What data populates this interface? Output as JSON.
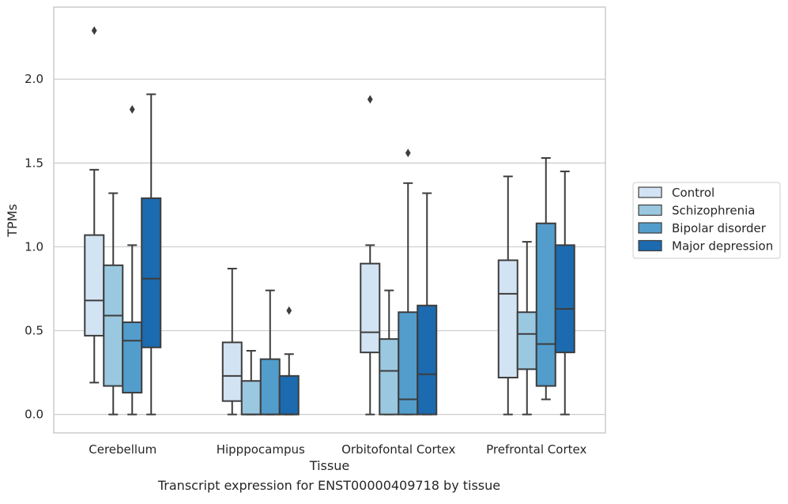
{
  "chart_data": {
    "type": "box",
    "xlabel": "Tissue",
    "ylabel": "TPMs",
    "ylim": [
      -0.11,
      2.43
    ],
    "yticks": [
      0.0,
      0.5,
      1.0,
      1.5,
      2.0
    ],
    "ytick_labels": [
      "0.0",
      "0.5",
      "1.0",
      "1.5",
      "2.0"
    ],
    "grid": "horizontal",
    "legend_position": "right",
    "categories": [
      "Cerebellum",
      "Hipppocampus",
      "Orbitofontal Cortex",
      "Prefrontal Cortex"
    ],
    "series": [
      {
        "name": "Control",
        "color": "#d2e3f3",
        "boxes": [
          {
            "whisker_low": 0.19,
            "q1": 0.47,
            "median": 0.68,
            "q3": 1.07,
            "whisker_high": 1.46,
            "outliers": [
              2.29
            ]
          },
          {
            "whisker_low": 0.0,
            "q1": 0.08,
            "median": 0.23,
            "q3": 0.43,
            "whisker_high": 0.87,
            "outliers": []
          },
          {
            "whisker_low": 0.0,
            "q1": 0.37,
            "median": 0.49,
            "q3": 0.9,
            "whisker_high": 1.01,
            "outliers": [
              1.88
            ]
          },
          {
            "whisker_low": 0.0,
            "q1": 0.22,
            "median": 0.72,
            "q3": 0.92,
            "whisker_high": 1.42,
            "outliers": []
          }
        ]
      },
      {
        "name": "Schizophrenia",
        "color": "#9ac8e0",
        "boxes": [
          {
            "whisker_low": 0.0,
            "q1": 0.17,
            "median": 0.59,
            "q3": 0.89,
            "whisker_high": 1.32,
            "outliers": []
          },
          {
            "whisker_low": 0.0,
            "q1": 0.0,
            "median": 0.0,
            "q3": 0.2,
            "whisker_high": 0.38,
            "outliers": []
          },
          {
            "whisker_low": 0.0,
            "q1": 0.0,
            "median": 0.26,
            "q3": 0.45,
            "whisker_high": 0.74,
            "outliers": []
          },
          {
            "whisker_low": 0.0,
            "q1": 0.27,
            "median": 0.48,
            "q3": 0.61,
            "whisker_high": 1.03,
            "outliers": []
          }
        ]
      },
      {
        "name": "Bipolar disorder",
        "color": "#529dcc",
        "boxes": [
          {
            "whisker_low": 0.0,
            "q1": 0.13,
            "median": 0.44,
            "q3": 0.55,
            "whisker_high": 1.01,
            "outliers": [
              1.82
            ]
          },
          {
            "whisker_low": 0.0,
            "q1": 0.0,
            "median": 0.0,
            "q3": 0.33,
            "whisker_high": 0.74,
            "outliers": []
          },
          {
            "whisker_low": 0.0,
            "q1": 0.0,
            "median": 0.09,
            "q3": 0.61,
            "whisker_high": 1.38,
            "outliers": [
              1.56
            ]
          },
          {
            "whisker_low": 0.09,
            "q1": 0.17,
            "median": 0.42,
            "q3": 1.14,
            "whisker_high": 1.53,
            "outliers": []
          }
        ]
      },
      {
        "name": "Major depression",
        "color": "#1c6aaf",
        "boxes": [
          {
            "whisker_low": 0.0,
            "q1": 0.4,
            "median": 0.81,
            "q3": 1.29,
            "whisker_high": 1.91,
            "outliers": []
          },
          {
            "whisker_low": 0.0,
            "q1": 0.0,
            "median": 0.0,
            "q3": 0.23,
            "whisker_high": 0.36,
            "outliers": [
              0.62
            ]
          },
          {
            "whisker_low": 0.0,
            "q1": 0.0,
            "median": 0.24,
            "q3": 0.65,
            "whisker_high": 1.32,
            "outliers": []
          },
          {
            "whisker_low": 0.0,
            "q1": 0.37,
            "median": 0.63,
            "q3": 1.01,
            "whisker_high": 1.45,
            "outliers": []
          }
        ]
      }
    ],
    "caption": "Transcript expression for ENST00000409718 by tissue"
  }
}
